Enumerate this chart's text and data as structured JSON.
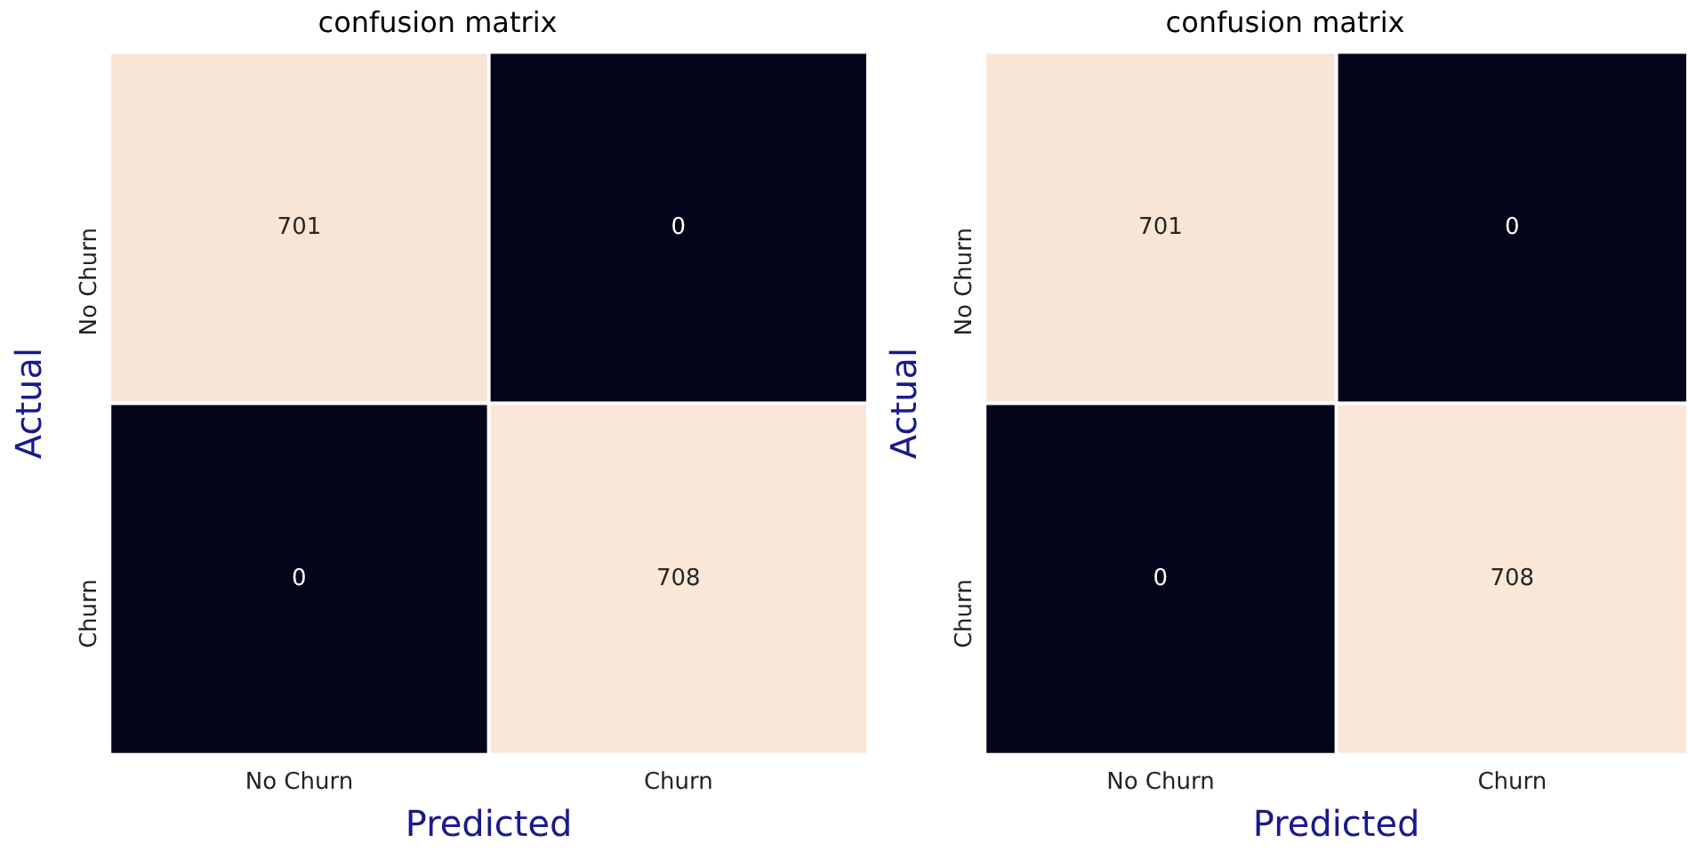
{
  "chart_data": [
    {
      "type": "heatmap",
      "title": "confusion matrix",
      "xlabel": "Predicted",
      "ylabel": "Actual",
      "categories": [
        "No Churn",
        "Churn"
      ],
      "y_categories": [
        "No Churn",
        "Churn"
      ],
      "cells": [
        [
          701,
          0
        ],
        [
          0,
          708
        ]
      ],
      "data_labels": true
    },
    {
      "type": "heatmap",
      "title": "confusion matrix",
      "xlabel": "Predicted",
      "ylabel": "Actual",
      "categories": [
        "No Churn",
        "Churn"
      ],
      "y_categories": [
        "No Churn",
        "Churn"
      ],
      "cells": [
        [
          701,
          0
        ],
        [
          0,
          708
        ]
      ],
      "data_labels": true
    }
  ]
}
